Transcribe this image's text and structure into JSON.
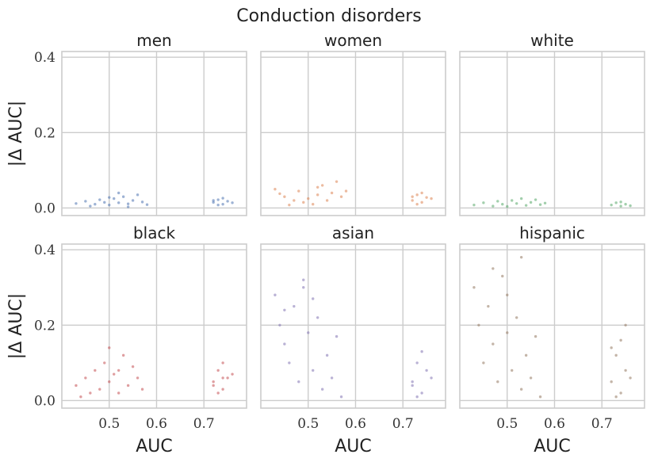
{
  "chart_data": {
    "type": "scatter",
    "title": "Conduction disorders",
    "xlabel": "AUC",
    "ylabel": "|Δ AUC|",
    "xlim": [
      0.4,
      0.79
    ],
    "ylim": [
      -0.02,
      0.415
    ],
    "xticks": [
      0.5,
      0.6,
      0.7
    ],
    "xtick_labels": [
      "0.5",
      "0.6",
      "0.7"
    ],
    "yticks": [
      0.0,
      0.2,
      0.4
    ],
    "ytick_labels": [
      "0.0",
      "0.2",
      "0.4"
    ],
    "grid": true,
    "panels": [
      {
        "name": "men",
        "color": "#4c72b0",
        "points": [
          [
            0.43,
            0.012
          ],
          [
            0.45,
            0.018
          ],
          [
            0.47,
            0.01
          ],
          [
            0.48,
            0.022
          ],
          [
            0.49,
            0.015
          ],
          [
            0.5,
            0.008
          ],
          [
            0.51,
            0.025
          ],
          [
            0.52,
            0.014
          ],
          [
            0.53,
            0.03
          ],
          [
            0.54,
            0.011
          ],
          [
            0.55,
            0.02
          ],
          [
            0.56,
            0.035
          ],
          [
            0.57,
            0.016
          ],
          [
            0.58,
            0.009
          ],
          [
            0.46,
            0.005
          ],
          [
            0.52,
            0.04
          ],
          [
            0.54,
            0.003
          ],
          [
            0.5,
            0.028
          ],
          [
            0.72,
            0.015
          ],
          [
            0.73,
            0.022
          ],
          [
            0.74,
            0.01
          ],
          [
            0.75,
            0.018
          ],
          [
            0.74,
            0.026
          ],
          [
            0.73,
            0.008
          ],
          [
            0.76,
            0.014
          ],
          [
            0.72,
            0.02
          ]
        ]
      },
      {
        "name": "women",
        "color": "#dd8452",
        "points": [
          [
            0.43,
            0.05
          ],
          [
            0.45,
            0.03
          ],
          [
            0.47,
            0.02
          ],
          [
            0.48,
            0.045
          ],
          [
            0.49,
            0.015
          ],
          [
            0.5,
            0.025
          ],
          [
            0.51,
            0.01
          ],
          [
            0.52,
            0.035
          ],
          [
            0.53,
            0.06
          ],
          [
            0.54,
            0.02
          ],
          [
            0.55,
            0.04
          ],
          [
            0.56,
            0.07
          ],
          [
            0.57,
            0.03
          ],
          [
            0.46,
            0.008
          ],
          [
            0.52,
            0.055
          ],
          [
            0.44,
            0.038
          ],
          [
            0.58,
            0.045
          ],
          [
            0.72,
            0.02
          ],
          [
            0.73,
            0.035
          ],
          [
            0.74,
            0.015
          ],
          [
            0.75,
            0.028
          ],
          [
            0.74,
            0.04
          ],
          [
            0.73,
            0.01
          ],
          [
            0.76,
            0.025
          ],
          [
            0.72,
            0.03
          ]
        ]
      },
      {
        "name": "white",
        "color": "#55a868",
        "points": [
          [
            0.43,
            0.008
          ],
          [
            0.45,
            0.014
          ],
          [
            0.47,
            0.005
          ],
          [
            0.48,
            0.018
          ],
          [
            0.49,
            0.01
          ],
          [
            0.5,
            0.004
          ],
          [
            0.51,
            0.02
          ],
          [
            0.52,
            0.012
          ],
          [
            0.53,
            0.025
          ],
          [
            0.54,
            0.007
          ],
          [
            0.55,
            0.015
          ],
          [
            0.56,
            0.022
          ],
          [
            0.57,
            0.009
          ],
          [
            0.58,
            0.013
          ],
          [
            0.72,
            0.008
          ],
          [
            0.73,
            0.014
          ],
          [
            0.74,
            0.005
          ],
          [
            0.75,
            0.01
          ],
          [
            0.74,
            0.016
          ],
          [
            0.76,
            0.006
          ]
        ]
      },
      {
        "name": "black",
        "color": "#c44e52",
        "points": [
          [
            0.43,
            0.04
          ],
          [
            0.45,
            0.06
          ],
          [
            0.46,
            0.02
          ],
          [
            0.47,
            0.08
          ],
          [
            0.48,
            0.03
          ],
          [
            0.49,
            0.1
          ],
          [
            0.5,
            0.05
          ],
          [
            0.51,
            0.07
          ],
          [
            0.52,
            0.02
          ],
          [
            0.53,
            0.12
          ],
          [
            0.54,
            0.04
          ],
          [
            0.55,
            0.09
          ],
          [
            0.56,
            0.06
          ],
          [
            0.57,
            0.03
          ],
          [
            0.5,
            0.14
          ],
          [
            0.44,
            0.01
          ],
          [
            0.52,
            0.08
          ],
          [
            0.72,
            0.05
          ],
          [
            0.73,
            0.08
          ],
          [
            0.74,
            0.03
          ],
          [
            0.75,
            0.06
          ],
          [
            0.74,
            0.1
          ],
          [
            0.73,
            0.02
          ],
          [
            0.76,
            0.07
          ],
          [
            0.72,
            0.04
          ],
          [
            0.74,
            0.06
          ]
        ]
      },
      {
        "name": "asian",
        "color": "#8172b3",
        "points": [
          [
            0.43,
            0.28
          ],
          [
            0.44,
            0.2
          ],
          [
            0.45,
            0.15
          ],
          [
            0.46,
            0.1
          ],
          [
            0.47,
            0.25
          ],
          [
            0.48,
            0.05
          ],
          [
            0.49,
            0.3
          ],
          [
            0.5,
            0.18
          ],
          [
            0.51,
            0.08
          ],
          [
            0.52,
            0.22
          ],
          [
            0.53,
            0.03
          ],
          [
            0.54,
            0.12
          ],
          [
            0.55,
            0.06
          ],
          [
            0.56,
            0.17
          ],
          [
            0.57,
            0.01
          ],
          [
            0.49,
            0.32
          ],
          [
            0.51,
            0.27
          ],
          [
            0.45,
            0.24
          ],
          [
            0.72,
            0.05
          ],
          [
            0.73,
            0.1
          ],
          [
            0.74,
            0.02
          ],
          [
            0.75,
            0.08
          ],
          [
            0.74,
            0.13
          ],
          [
            0.73,
            0.01
          ],
          [
            0.76,
            0.06
          ],
          [
            0.72,
            0.04
          ]
        ]
      },
      {
        "name": "hispanic",
        "color": "#937860",
        "points": [
          [
            0.43,
            0.3
          ],
          [
            0.44,
            0.2
          ],
          [
            0.45,
            0.1
          ],
          [
            0.46,
            0.25
          ],
          [
            0.47,
            0.15
          ],
          [
            0.48,
            0.05
          ],
          [
            0.49,
            0.33
          ],
          [
            0.5,
            0.18
          ],
          [
            0.51,
            0.08
          ],
          [
            0.52,
            0.22
          ],
          [
            0.53,
            0.03
          ],
          [
            0.54,
            0.12
          ],
          [
            0.55,
            0.06
          ],
          [
            0.56,
            0.17
          ],
          [
            0.57,
            0.01
          ],
          [
            0.47,
            0.35
          ],
          [
            0.53,
            0.38
          ],
          [
            0.5,
            0.28
          ],
          [
            0.72,
            0.05
          ],
          [
            0.73,
            0.12
          ],
          [
            0.74,
            0.02
          ],
          [
            0.75,
            0.08
          ],
          [
            0.74,
            0.16
          ],
          [
            0.73,
            0.01
          ],
          [
            0.76,
            0.06
          ],
          [
            0.72,
            0.14
          ],
          [
            0.75,
            0.2
          ]
        ]
      }
    ]
  }
}
